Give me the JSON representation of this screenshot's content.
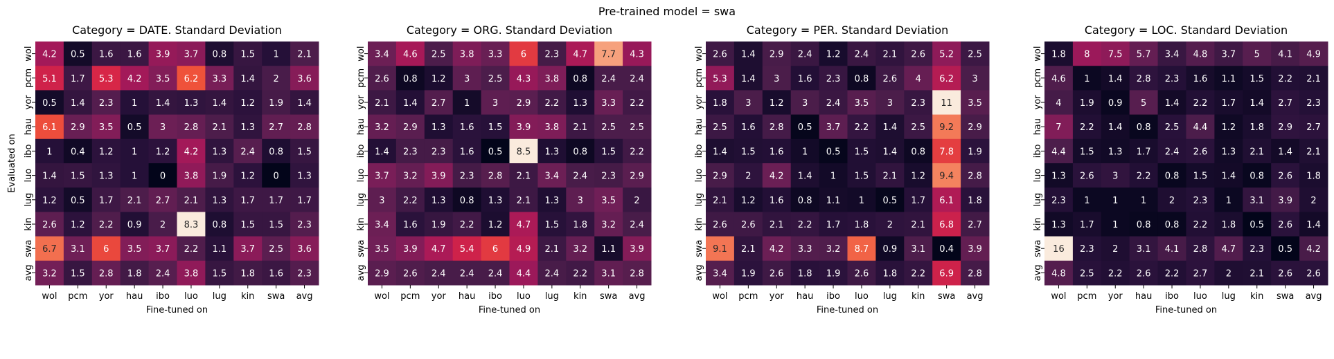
{
  "figure": {
    "suptitle": "Pre-trained model = swa"
  },
  "chart_data": [
    {
      "type": "heatmap",
      "title": "Category = DATE. Standard Deviation",
      "xlabel": "Fine-tuned on",
      "ylabel": "Evaluated on",
      "x_categories": [
        "wol",
        "pcm",
        "yor",
        "hau",
        "ibo",
        "luo",
        "lug",
        "kin",
        "swa",
        "avg"
      ],
      "y_categories": [
        "wol",
        "pcm",
        "yor",
        "hau",
        "ibo",
        "luo",
        "lug",
        "kin",
        "swa",
        "avg"
      ],
      "values": [
        [
          4.2,
          0.5,
          1.6,
          1.6,
          3.9,
          3.7,
          0.8,
          1.5,
          1,
          2.1
        ],
        [
          5.1,
          1.7,
          5.3,
          4.2,
          3.5,
          6.2,
          3.3,
          1.4,
          2,
          3.6
        ],
        [
          0.5,
          1.4,
          2.3,
          1,
          1.4,
          1.3,
          1.4,
          1.2,
          1.9,
          1.4
        ],
        [
          6.1,
          2.9,
          3.5,
          0.5,
          3,
          2.8,
          2.1,
          1.3,
          2.7,
          2.8
        ],
        [
          1,
          0.4,
          1.2,
          1,
          1.2,
          4.2,
          1.3,
          2.4,
          0.8,
          1.5
        ],
        [
          1.4,
          1.5,
          1.3,
          1,
          0,
          3.8,
          1.9,
          1.2,
          0,
          1.3
        ],
        [
          1.2,
          0.5,
          1.7,
          2.1,
          2.7,
          2.1,
          1.3,
          1.7,
          1.7,
          1.7
        ],
        [
          2.6,
          1.2,
          2.2,
          0.9,
          2,
          8.3,
          0.8,
          1.5,
          1.5,
          2.3
        ],
        [
          6.7,
          3.1,
          6,
          3.5,
          3.7,
          2.2,
          1.1,
          3.7,
          2.5,
          3.6
        ],
        [
          3.2,
          1.5,
          2.8,
          1.8,
          2.4,
          3.8,
          1.5,
          1.8,
          1.6,
          2.3
        ]
      ],
      "colormap": "rocket"
    },
    {
      "type": "heatmap",
      "title": "Category = ORG. Standard Deviation",
      "xlabel": "Fine-tuned on",
      "ylabel": "",
      "x_categories": [
        "wol",
        "pcm",
        "yor",
        "hau",
        "ibo",
        "luo",
        "lug",
        "kin",
        "swa",
        "avg"
      ],
      "y_categories": [
        "wol",
        "pcm",
        "yor",
        "hau",
        "ibo",
        "luo",
        "lug",
        "kin",
        "swa",
        "avg"
      ],
      "values": [
        [
          3.4,
          4.6,
          2.5,
          3.8,
          3.3,
          6,
          2.3,
          4.7,
          7.7,
          4.3
        ],
        [
          2.6,
          0.8,
          1.2,
          3,
          2.5,
          4.3,
          3.8,
          0.8,
          2.4,
          2.4
        ],
        [
          2.1,
          1.4,
          2.7,
          1,
          3,
          2.9,
          2.2,
          1.3,
          3.3,
          2.2
        ],
        [
          3.2,
          2.9,
          1.3,
          1.6,
          1.5,
          3.9,
          3.8,
          2.1,
          2.5,
          2.5
        ],
        [
          1.4,
          2.3,
          2.3,
          1.6,
          0.5,
          8.5,
          1.3,
          0.8,
          1.5,
          2.2
        ],
        [
          3.7,
          3.2,
          3.9,
          2.3,
          2.8,
          2.1,
          3.4,
          2.4,
          2.3,
          2.9
        ],
        [
          3,
          2.2,
          1.3,
          0.8,
          1.3,
          2.1,
          1.3,
          3,
          3.5,
          2
        ],
        [
          3.4,
          1.6,
          1.9,
          2.2,
          1.2,
          4.7,
          1.5,
          1.8,
          3.2,
          2.4
        ],
        [
          3.5,
          3.9,
          4.7,
          5.4,
          6,
          4.9,
          2.1,
          3.2,
          1.1,
          3.9
        ],
        [
          2.9,
          2.6,
          2.4,
          2.4,
          2.4,
          4.4,
          2.4,
          2.2,
          3.1,
          2.8
        ]
      ],
      "colormap": "rocket"
    },
    {
      "type": "heatmap",
      "title": "Category = PER. Standard Deviation",
      "xlabel": "Fine-tuned on",
      "ylabel": "",
      "x_categories": [
        "wol",
        "pcm",
        "yor",
        "hau",
        "ibo",
        "luo",
        "lug",
        "kin",
        "swa",
        "avg"
      ],
      "y_categories": [
        "wol",
        "pcm",
        "yor",
        "hau",
        "ibo",
        "luo",
        "lug",
        "kin",
        "swa",
        "avg"
      ],
      "values": [
        [
          2.6,
          1.4,
          2.9,
          2.4,
          1.2,
          2.4,
          2.1,
          2.6,
          5.2,
          2.5
        ],
        [
          5.3,
          1.4,
          3,
          1.6,
          2.3,
          0.8,
          2.6,
          4,
          6.2,
          3
        ],
        [
          1.8,
          3,
          1.2,
          3,
          2.4,
          3.5,
          3,
          2.3,
          11,
          3.5
        ],
        [
          2.5,
          1.6,
          2.8,
          0.5,
          3.7,
          2.2,
          1.4,
          2.5,
          9.2,
          2.9
        ],
        [
          1.4,
          1.5,
          1.6,
          1,
          0.5,
          1.5,
          1.4,
          0.8,
          7.8,
          1.9
        ],
        [
          2.9,
          2,
          4.2,
          1.4,
          1,
          1.5,
          2.1,
          1.2,
          9.4,
          2.8
        ],
        [
          2.1,
          1.2,
          1.6,
          0.8,
          1.1,
          1,
          0.5,
          1.7,
          6.1,
          1.8
        ],
        [
          2.6,
          2.6,
          2.1,
          2.2,
          1.7,
          1.8,
          2,
          2.1,
          6.8,
          2.7
        ],
        [
          9.1,
          2.1,
          4.2,
          3.3,
          3.2,
          8.7,
          0.9,
          3.1,
          0.4,
          3.9
        ],
        [
          3.4,
          1.9,
          2.6,
          1.8,
          1.9,
          2.6,
          1.8,
          2.2,
          6.9,
          2.8
        ]
      ],
      "colormap": "rocket"
    },
    {
      "type": "heatmap",
      "title": "Category = LOC. Standard Deviation",
      "xlabel": "Fine-tuned on",
      "ylabel": "",
      "x_categories": [
        "wol",
        "pcm",
        "yor",
        "hau",
        "ibo",
        "luo",
        "lug",
        "kin",
        "swa",
        "avg"
      ],
      "y_categories": [
        "wol",
        "pcm",
        "yor",
        "hau",
        "ibo",
        "luo",
        "lug",
        "kin",
        "swa",
        "avg"
      ],
      "values": [
        [
          1.8,
          8,
          7.5,
          5.7,
          3.4,
          4.8,
          3.7,
          5,
          4.1,
          4.9
        ],
        [
          4.6,
          1,
          1.4,
          2.8,
          2.3,
          1.6,
          1.1,
          1.5,
          2.2,
          2.1
        ],
        [
          4,
          1.9,
          0.9,
          5,
          1.4,
          2.2,
          1.7,
          1.4,
          2.7,
          2.3
        ],
        [
          7,
          2.2,
          1.4,
          0.8,
          2.5,
          4.4,
          1.2,
          1.8,
          2.9,
          2.7
        ],
        [
          4.4,
          1.5,
          1.3,
          1.7,
          2.4,
          2.6,
          1.3,
          2.1,
          1.4,
          2.1
        ],
        [
          1.3,
          2.6,
          3,
          2.2,
          0.8,
          1.5,
          1.4,
          0.8,
          2.6,
          1.8
        ],
        [
          2.3,
          1,
          1,
          1,
          2,
          2.3,
          1,
          3.1,
          3.9,
          2
        ],
        [
          1.3,
          1.7,
          1,
          0.8,
          0.8,
          2.2,
          1.8,
          0.5,
          2.6,
          1.4
        ],
        [
          16,
          2.3,
          2,
          3.1,
          4.1,
          2.8,
          4.7,
          2.3,
          0.5,
          4.2
        ],
        [
          4.8,
          2.5,
          2.2,
          2.6,
          2.2,
          2.7,
          2,
          2.1,
          2.6,
          2.6
        ]
      ],
      "colormap": "rocket"
    }
  ]
}
